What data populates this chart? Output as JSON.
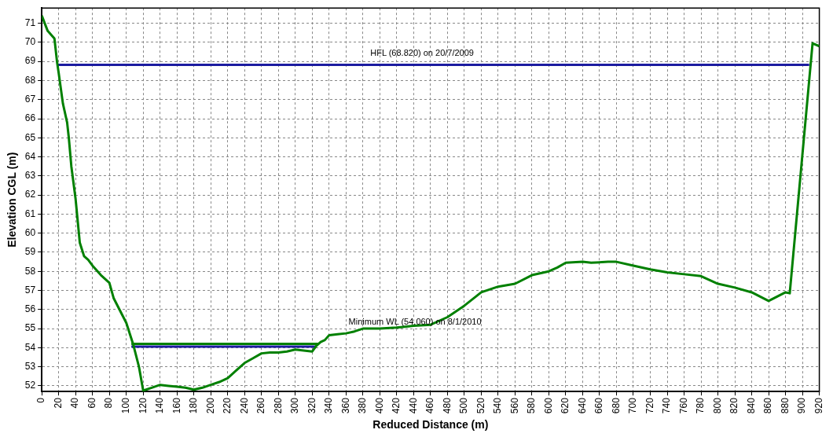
{
  "chart_data": {
    "type": "line",
    "xlabel": "Reduced Distance (m)",
    "ylabel": "Elevation CGL (m)",
    "xlim": [
      0,
      920
    ],
    "xticks": [
      0,
      20,
      40,
      60,
      80,
      100,
      120,
      140,
      160,
      180,
      200,
      220,
      240,
      260,
      280,
      300,
      320,
      340,
      360,
      380,
      400,
      420,
      440,
      460,
      480,
      500,
      520,
      540,
      560,
      580,
      600,
      620,
      640,
      660,
      680,
      700,
      720,
      740,
      760,
      780,
      800,
      820,
      840,
      860,
      880,
      900,
      920
    ],
    "ylim": [
      51.7,
      71.8
    ],
    "yticks": [
      52,
      53,
      54,
      55,
      56,
      57,
      58,
      59,
      60,
      61,
      62,
      63,
      64,
      65,
      66,
      67,
      68,
      69,
      70,
      71
    ],
    "grid": true,
    "series": [
      {
        "color": "#008000",
        "x": [
          0,
          7,
          15,
          18,
          20,
          25,
          30,
          32,
          35,
          40,
          45,
          50,
          55,
          60,
          70,
          80,
          85,
          100,
          108,
          115,
          120,
          130,
          140,
          150,
          160,
          170,
          180,
          190,
          200,
          210,
          220,
          230,
          240,
          250,
          260,
          270,
          280,
          290,
          300,
          310,
          320,
          325,
          330,
          335,
          340,
          350,
          360,
          370,
          380,
          400,
          420,
          440,
          460,
          480,
          500,
          520,
          540,
          560,
          580,
          600,
          610,
          620,
          640,
          650,
          670,
          680,
          700,
          720,
          740,
          760,
          780,
          800,
          820,
          840,
          860,
          880,
          885,
          912,
          920
        ],
        "values": [
          71.4,
          70.6,
          70.2,
          69.0,
          68.4,
          66.8,
          65.8,
          65.0,
          63.5,
          61.8,
          59.5,
          58.8,
          58.6,
          58.3,
          57.8,
          57.4,
          56.6,
          55.3,
          54.2,
          53.0,
          51.75,
          51.9,
          52.05,
          52.0,
          51.95,
          51.9,
          51.8,
          51.9,
          52.05,
          52.2,
          52.4,
          52.8,
          53.2,
          53.45,
          53.7,
          53.75,
          53.75,
          53.8,
          53.9,
          53.85,
          53.8,
          54.1,
          54.3,
          54.4,
          54.65,
          54.7,
          54.75,
          54.85,
          55.0,
          55.0,
          55.05,
          55.15,
          55.2,
          55.6,
          56.2,
          56.9,
          57.2,
          57.35,
          57.8,
          58.0,
          58.2,
          58.45,
          58.5,
          58.45,
          58.5,
          58.5,
          58.3,
          58.1,
          57.95,
          57.85,
          57.75,
          57.35,
          57.15,
          56.9,
          56.45,
          56.9,
          56.85,
          69.95,
          69.8
        ]
      },
      {
        "color": "#008000",
        "x": [
          106,
          328
        ],
        "values": [
          54.2,
          54.2
        ]
      },
      {
        "color": "#1c1ca0",
        "x": [
          106,
          325
        ],
        "values": [
          54.06,
          54.06
        ]
      },
      {
        "color": "#1c1ca0",
        "x": [
          18,
          908
        ],
        "values": [
          68.82,
          68.82
        ]
      }
    ],
    "annotations": [
      {
        "text": "HFL (68.820) on 20/7/2009",
        "x": 450,
        "y": 68.82
      },
      "Minimum WL (54.060) on 8/1/2010"
    ]
  }
}
